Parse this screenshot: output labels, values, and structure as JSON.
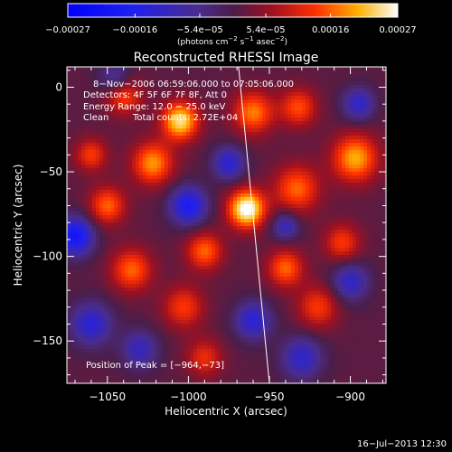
{
  "chart_data": {
    "type": "heatmap",
    "title": "Reconstructed RHESSI Image",
    "xlabel": "Heliocentric X (arcsec)",
    "ylabel": "Heliocentric Y (arcsec)",
    "xlim": [
      -1075,
      -878
    ],
    "ylim": [
      -175,
      12
    ],
    "x_ticks": [
      -1050,
      -1000,
      -950,
      -900
    ],
    "x_tick_labels": [
      "−1050",
      "−1000",
      "−950",
      "−900"
    ],
    "y_ticks": [
      0,
      -50,
      -100,
      -150
    ],
    "y_tick_labels": [
      "0",
      "−50",
      "−100",
      "−150"
    ],
    "colorbar": {
      "min": -0.00027,
      "max": 0.00027,
      "tick_values": [
        -0.00027,
        -0.00016,
        -5.4e-05,
        5.4e-05,
        0.00016,
        0.00027
      ],
      "tick_labels": [
        "−0.00027",
        "−0.00016",
        "−5.4e−05",
        "5.4e−05",
        "0.00016",
        "0.00027"
      ],
      "units_label": "(photons cm",
      "units_sup1": "−2",
      "units_mid": " s",
      "units_sup2": "−1",
      "units_tail": " asec",
      "units_sup3": "−2",
      "units_close": ")"
    },
    "info": {
      "time_range": "8−Nov−2006 06:59:06.000 to 07:05:06.000",
      "detectors": "Detectors: 4F 5F 6F 7F 8F, Att 0",
      "energy": "Energy Range: 12.0 − 25.0 keV",
      "clean": "Clean",
      "counts": "Total counts: 2.72E+04",
      "peak": "Position of Peak = [−964,−73]"
    },
    "peak": [
      -964,
      -73
    ],
    "limb_line": [
      [
        -969,
        12
      ],
      [
        -950,
        -175
      ]
    ],
    "blobs": [
      {
        "x": -964,
        "y": -72,
        "a": 1.0,
        "s": 8
      },
      {
        "x": -933,
        "y": -60,
        "a": 0.55,
        "s": 10
      },
      {
        "x": -897,
        "y": -42,
        "a": 0.7,
        "s": 10
      },
      {
        "x": -960,
        "y": -15,
        "a": 0.6,
        "s": 9
      },
      {
        "x": -1005,
        "y": -20,
        "a": 0.85,
        "s": 8
      },
      {
        "x": -940,
        "y": -107,
        "a": 0.55,
        "s": 8
      },
      {
        "x": -1022,
        "y": -45,
        "a": 0.65,
        "s": 9
      },
      {
        "x": -1050,
        "y": -70,
        "a": 0.55,
        "s": 8
      },
      {
        "x": -1035,
        "y": -108,
        "a": 0.55,
        "s": 9
      },
      {
        "x": -990,
        "y": -97,
        "a": 0.55,
        "s": 8
      },
      {
        "x": -1003,
        "y": -130,
        "a": 0.45,
        "s": 9
      },
      {
        "x": -920,
        "y": -130,
        "a": 0.45,
        "s": 9
      },
      {
        "x": -990,
        "y": -160,
        "a": 0.4,
        "s": 8
      },
      {
        "x": -1040,
        "y": -5,
        "a": 0.5,
        "s": 8
      },
      {
        "x": -1060,
        "y": -40,
        "a": 0.45,
        "s": 7
      },
      {
        "x": -905,
        "y": -92,
        "a": 0.45,
        "s": 8
      },
      {
        "x": -932,
        "y": -12,
        "a": 0.5,
        "s": 8
      },
      {
        "x": -1060,
        "y": -140,
        "a": -0.55,
        "s": 9
      },
      {
        "x": -1000,
        "y": -70,
        "a": -0.7,
        "s": 8
      },
      {
        "x": -1070,
        "y": -88,
        "a": -0.8,
        "s": 8
      },
      {
        "x": -930,
        "y": -160,
        "a": -0.5,
        "s": 9
      },
      {
        "x": -900,
        "y": -115,
        "a": -0.5,
        "s": 8
      },
      {
        "x": -975,
        "y": -45,
        "a": -0.55,
        "s": 7
      },
      {
        "x": -940,
        "y": -82,
        "a": -0.45,
        "s": 6
      },
      {
        "x": -1030,
        "y": -155,
        "a": -0.45,
        "s": 8
      },
      {
        "x": -1045,
        "y": 5,
        "a": -0.4,
        "s": 7
      },
      {
        "x": -960,
        "y": -138,
        "a": -0.55,
        "s": 8
      },
      {
        "x": -895,
        "y": -10,
        "a": -0.5,
        "s": 7
      }
    ]
  },
  "timestamp": "16−Jul−2013 12:30"
}
